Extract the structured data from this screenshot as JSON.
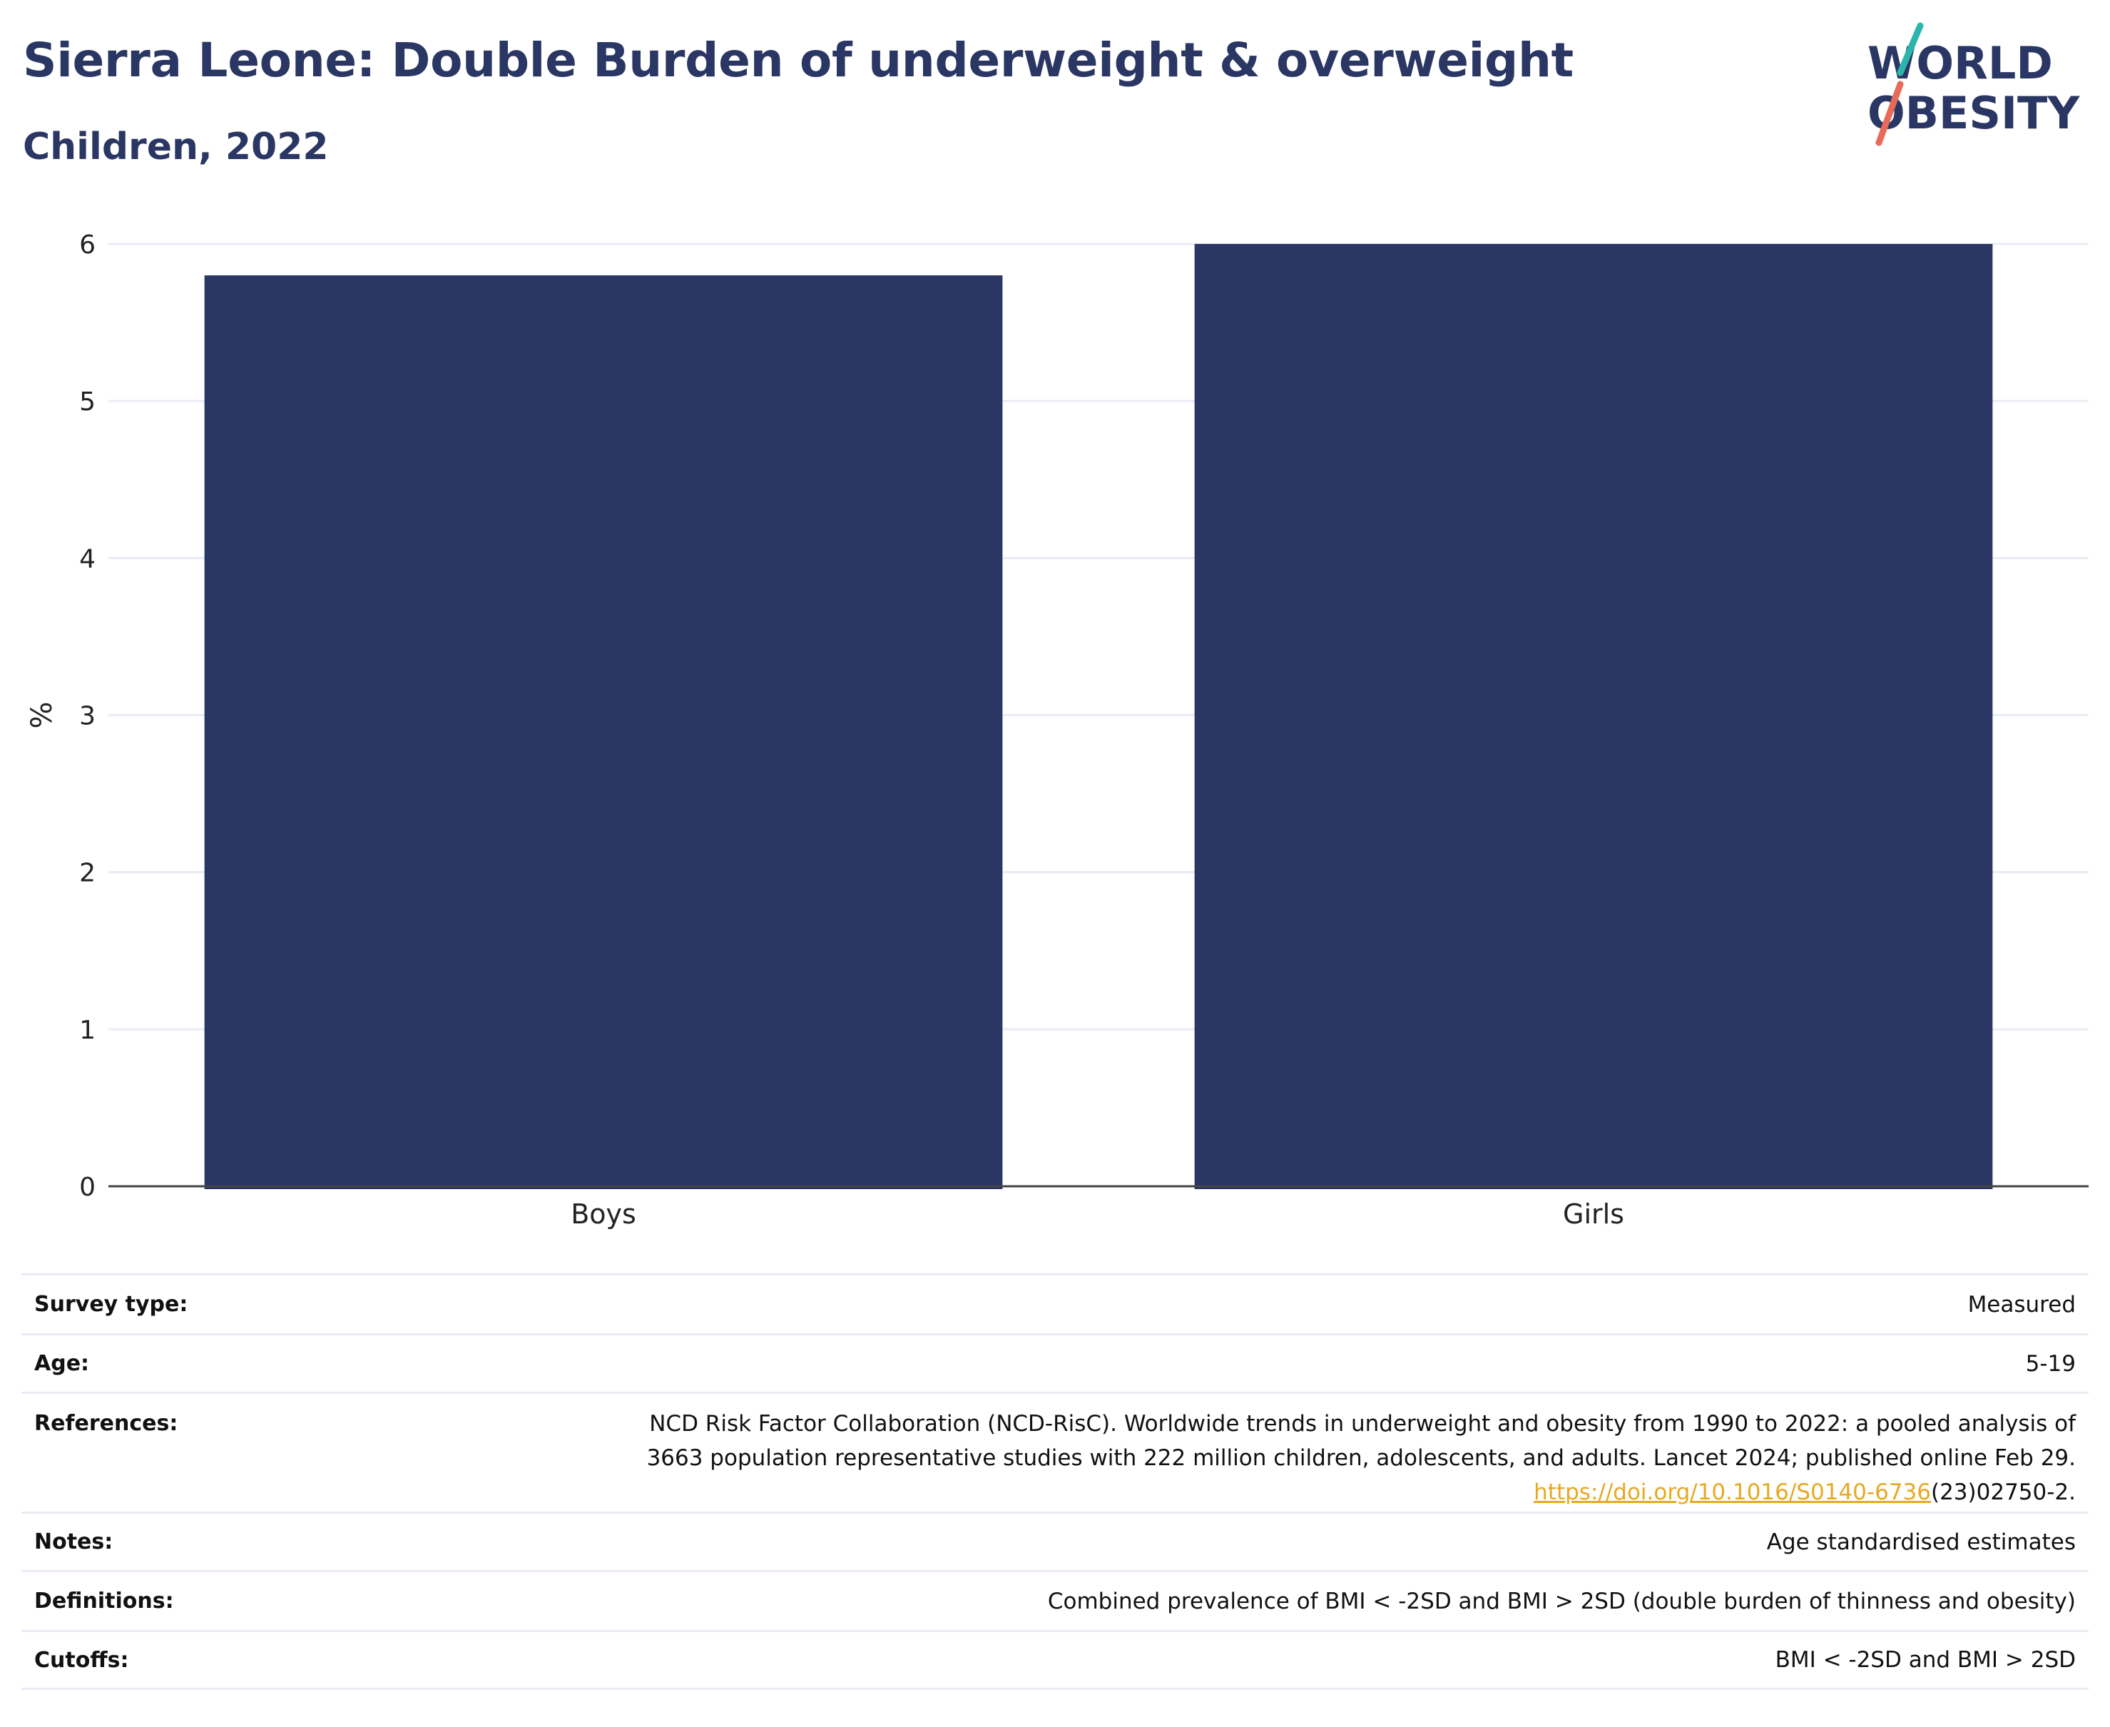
{
  "title": "Sierra Leone: Double Burden of underweight & overweight",
  "subtitle": "Children, 2022",
  "logo": {
    "line1": "WORLD",
    "line2": "OBESITY",
    "accent_teal": "#2bb5ad",
    "accent_coral": "#e86a58"
  },
  "colors": {
    "bar": "#2a3663",
    "grid": "#e9ecf4",
    "axis": "#444444",
    "link": "#e8a823"
  },
  "chart_data": {
    "type": "bar",
    "categories": [
      "Boys",
      "Girls"
    ],
    "values": [
      5.8,
      6.0
    ],
    "ylabel": "%",
    "ylim": [
      0,
      6
    ],
    "yticks": [
      0,
      1,
      2,
      3,
      4,
      5,
      6
    ],
    "grid": true
  },
  "info": {
    "survey_type": {
      "label": "Survey type:",
      "value": "Measured"
    },
    "age": {
      "label": "Age:",
      "value": "5-19"
    },
    "references": {
      "label": "References:",
      "line1": "NCD Risk Factor Collaboration (NCD-RisC). Worldwide trends in underweight and obesity from 1990 to 2022: a pooled analysis of",
      "line2": "3663 population representative studies with 222 million children, adolescents, and adults. Lancet 2024; published online Feb 29.",
      "link_text": "https://doi.org/10.1016/S0140-6736",
      "link_suffix": "(23)02750-2."
    },
    "notes": {
      "label": "Notes:",
      "value": "Age standardised estimates"
    },
    "definitions": {
      "label": "Definitions:",
      "value": "Combined prevalence of BMI < -2SD and BMI > 2SD (double burden of thinness and obesity)"
    },
    "cutoffs": {
      "label": "Cutoffs:",
      "value": "BMI < -2SD and BMI > 2SD"
    }
  }
}
